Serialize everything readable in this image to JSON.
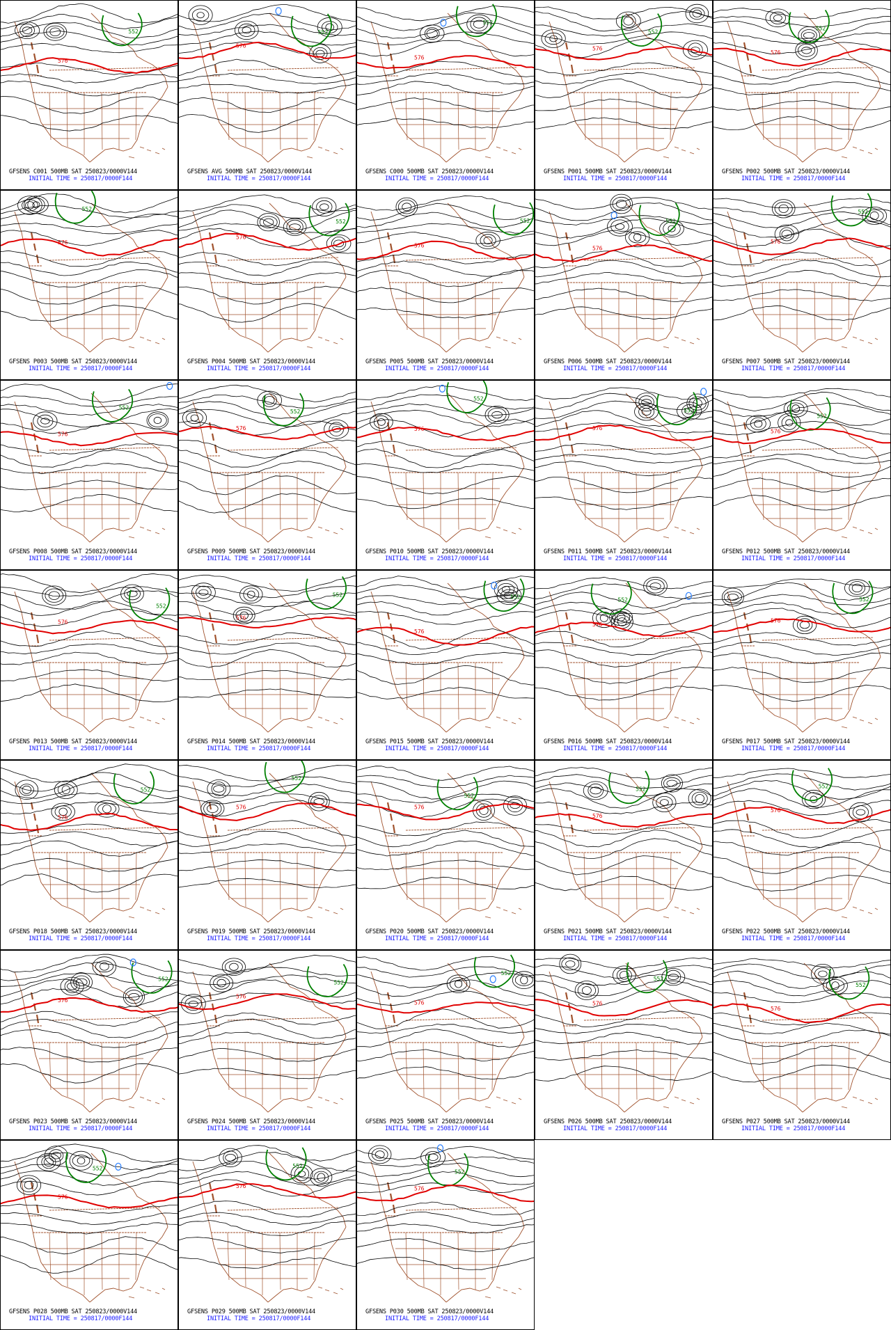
{
  "colors": {
    "contour": "#000000",
    "line_576": "#e00000",
    "line_552": "#008000",
    "low_core": "#2a7fff",
    "geography": "#a0522d",
    "caption_main": "#000000",
    "caption_time": "#1a1aff"
  },
  "contour_labels": {
    "red": "576",
    "green": "552"
  },
  "panels": [
    {
      "caption": "GFSENS C001 500MB SAT 250823/0000V144",
      "initial": "INITIAL TIME = 250817/0000F144"
    },
    {
      "caption": "GFSENS AVG 500MB SAT 250823/0000V144",
      "initial": "INITIAL TIME = 250817/0000F144"
    },
    {
      "caption": "GFSENS C000 500MB SAT 250823/0000V144",
      "initial": "INITIAL TIME = 250817/0000F144"
    },
    {
      "caption": "GFSENS P001 500MB SAT 250823/0000V144",
      "initial": "INITIAL TIME = 250817/0000F144"
    },
    {
      "caption": "GFSENS P002 500MB SAT 250823/0000V144",
      "initial": "INITIAL TIME = 250817/0000F144"
    },
    {
      "caption": "GFSENS P003 500MB SAT 250823/0000V144",
      "initial": "INITIAL TIME = 250817/0000F144"
    },
    {
      "caption": "GFSENS P004 500MB SAT 250823/0000V144",
      "initial": "INITIAL TIME = 250817/0000F144"
    },
    {
      "caption": "GFSENS P005 500MB SAT 250823/0000V144",
      "initial": "INITIAL TIME = 250817/0000F144"
    },
    {
      "caption": "GFSENS P006 500MB SAT 250823/0000V144",
      "initial": "INITIAL TIME = 250817/0000F144"
    },
    {
      "caption": "GFSENS P007 500MB SAT 250823/0000V144",
      "initial": "INITIAL TIME = 250817/0000F144"
    },
    {
      "caption": "GFSENS P008 500MB SAT 250823/0000V144",
      "initial": "INITIAL TIME = 250817/0000F144"
    },
    {
      "caption": "GFSENS P009 500MB SAT 250823/0000V144",
      "initial": "INITIAL TIME = 250817/0000F144"
    },
    {
      "caption": "GFSENS P010 500MB SAT 250823/0000V144",
      "initial": "INITIAL TIME = 250817/0000F144"
    },
    {
      "caption": "GFSENS P011 500MB SAT 250823/0000V144",
      "initial": "INITIAL TIME = 250817/0000F144"
    },
    {
      "caption": "GFSENS P012 500MB SAT 250823/0000V144",
      "initial": "INITIAL TIME = 250817/0000F144"
    },
    {
      "caption": "GFSENS P013 500MB SAT 250823/0000V144",
      "initial": "INITIAL TIME = 250817/0000F144"
    },
    {
      "caption": "GFSENS P014 500MB SAT 250823/0000V144",
      "initial": "INITIAL TIME = 250817/0000F144"
    },
    {
      "caption": "GFSENS P015 500MB SAT 250823/0000V144",
      "initial": "INITIAL TIME = 250817/0000F144"
    },
    {
      "caption": "GFSENS P016 500MB SAT 250823/0000V144",
      "initial": "INITIAL TIME = 250817/0000F144"
    },
    {
      "caption": "GFSENS P017 500MB SAT 250823/0000V144",
      "initial": "INITIAL TIME = 250817/0000F144"
    },
    {
      "caption": "GFSENS P018 500MB SAT 250823/0000V144",
      "initial": "INITIAL TIME = 250817/0000F144"
    },
    {
      "caption": "GFSENS P019 500MB SAT 250823/0000V144",
      "initial": "INITIAL TIME = 250817/0000F144"
    },
    {
      "caption": "GFSENS P020 500MB SAT 250823/0000V144",
      "initial": "INITIAL TIME = 250817/0000F144"
    },
    {
      "caption": "GFSENS P021 500MB SAT 250823/0000V144",
      "initial": "INITIAL TIME = 250817/0000F144"
    },
    {
      "caption": "GFSENS P022 500MB SAT 250823/0000V144",
      "initial": "INITIAL TIME = 250817/0000F144"
    },
    {
      "caption": "GFSENS P023 500MB SAT 250823/0000V144",
      "initial": "INITIAL TIME = 250817/0000F144"
    },
    {
      "caption": "GFSENS P024 500MB SAT 250823/0000V144",
      "initial": "INITIAL TIME = 250817/0000F144"
    },
    {
      "caption": "GFSENS P025 500MB SAT 250823/0000V144",
      "initial": "INITIAL TIME = 250817/0000F144"
    },
    {
      "caption": "GFSENS P026 500MB SAT 250823/0000V144",
      "initial": "INITIAL TIME = 250817/0000F144"
    },
    {
      "caption": "GFSENS P027 500MB SAT 250823/0000V144",
      "initial": "INITIAL TIME = 250817/0000F144"
    },
    {
      "caption": "GFSENS P028 500MB SAT 250823/0000V144",
      "initial": "INITIAL TIME = 250817/0000F144"
    },
    {
      "caption": "GFSENS P029 500MB SAT 250823/0000V144",
      "initial": "INITIAL TIME = 250817/0000F144"
    },
    {
      "caption": "GFSENS P030 500MB SAT 250823/0000V144",
      "initial": "INITIAL TIME = 250817/0000F144"
    }
  ]
}
